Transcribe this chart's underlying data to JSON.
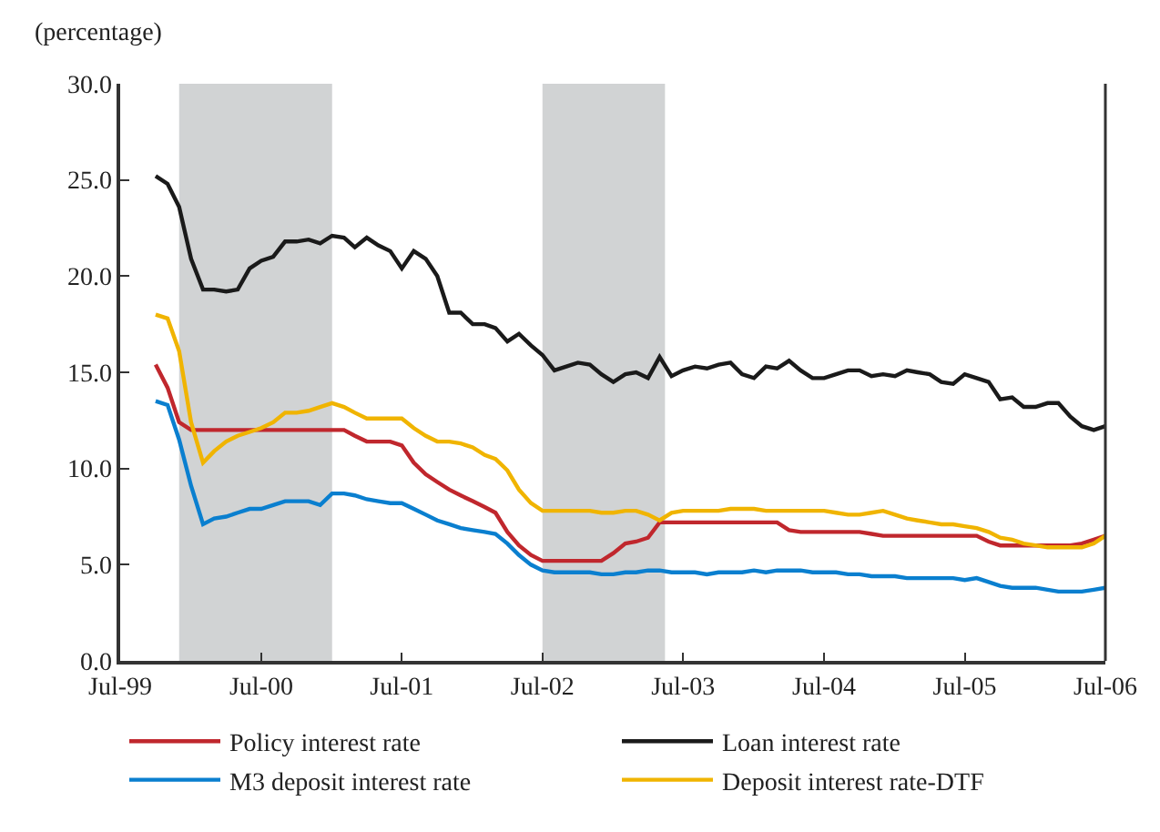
{
  "chart_data": {
    "type": "line",
    "ylabel": "(percentage)",
    "x": [
      "1999-10",
      "1999-11",
      "1999-12",
      "2000-01",
      "2000-02",
      "2000-03",
      "2000-04",
      "2000-05",
      "2000-06",
      "2000-07",
      "2000-08",
      "2000-09",
      "2000-10",
      "2000-11",
      "2000-12",
      "2001-01",
      "2001-02",
      "2001-03",
      "2001-04",
      "2001-05",
      "2001-06",
      "2001-07",
      "2001-08",
      "2001-09",
      "2001-10",
      "2001-11",
      "2001-12",
      "2002-01",
      "2002-02",
      "2002-03",
      "2002-04",
      "2002-05",
      "2002-06",
      "2002-07",
      "2002-08",
      "2002-09",
      "2002-10",
      "2002-11",
      "2002-12",
      "2003-01",
      "2003-02",
      "2003-03",
      "2003-04",
      "2003-05",
      "2003-06",
      "2003-07",
      "2003-08",
      "2003-09",
      "2003-10",
      "2003-11",
      "2003-12",
      "2004-01",
      "2004-02",
      "2004-03",
      "2004-04",
      "2004-05",
      "2004-06",
      "2004-07",
      "2004-08",
      "2004-09",
      "2004-10",
      "2004-11",
      "2004-12",
      "2005-01",
      "2005-02",
      "2005-03",
      "2005-04",
      "2005-05",
      "2005-06",
      "2005-07",
      "2005-08",
      "2005-09",
      "2005-10",
      "2005-11",
      "2005-12",
      "2006-01",
      "2006-02",
      "2006-03",
      "2006-04",
      "2006-05",
      "2006-06",
      "2006-07"
    ],
    "series": [
      {
        "name": "Policy interest rate",
        "color": "#c0272d",
        "values": [
          15.4,
          14.2,
          12.4,
          12.0,
          12.0,
          12.0,
          12.0,
          12.0,
          12.0,
          12.0,
          12.0,
          12.0,
          12.0,
          12.0,
          12.0,
          12.0,
          12.0,
          11.7,
          11.4,
          11.4,
          11.4,
          11.2,
          10.3,
          9.7,
          9.3,
          8.9,
          8.6,
          8.3,
          8.0,
          7.7,
          6.7,
          6.0,
          5.5,
          5.2,
          5.2,
          5.2,
          5.2,
          5.2,
          5.2,
          5.6,
          6.1,
          6.2,
          6.4,
          7.2,
          7.2,
          7.2,
          7.2,
          7.2,
          7.2,
          7.2,
          7.2,
          7.2,
          7.2,
          7.2,
          6.8,
          6.7,
          6.7,
          6.7,
          6.7,
          6.7,
          6.7,
          6.6,
          6.5,
          6.5,
          6.5,
          6.5,
          6.5,
          6.5,
          6.5,
          6.5,
          6.5,
          6.2,
          6.0,
          6.0,
          6.0,
          6.0,
          6.0,
          6.0,
          6.0,
          6.1,
          6.3,
          6.5
        ]
      },
      {
        "name": "Loan interest rate",
        "color": "#1a1a1a",
        "values": [
          25.2,
          24.8,
          23.6,
          20.9,
          19.3,
          19.3,
          19.2,
          19.3,
          20.4,
          20.8,
          21.0,
          21.8,
          21.8,
          21.9,
          21.7,
          22.1,
          22.0,
          21.5,
          22.0,
          21.6,
          21.3,
          20.4,
          21.3,
          20.9,
          20.0,
          18.1,
          18.1,
          17.5,
          17.5,
          17.3,
          16.6,
          17.0,
          16.4,
          15.9,
          15.1,
          15.3,
          15.5,
          15.4,
          14.9,
          14.5,
          14.9,
          15.0,
          14.7,
          15.8,
          14.8,
          15.1,
          15.3,
          15.2,
          15.4,
          15.5,
          14.9,
          14.7,
          15.3,
          15.2,
          15.6,
          15.1,
          14.7,
          14.7,
          14.9,
          15.1,
          15.1,
          14.8,
          14.9,
          14.8,
          15.1,
          15.0,
          14.9,
          14.5,
          14.4,
          14.9,
          14.7,
          14.5,
          13.6,
          13.7,
          13.2,
          13.2,
          13.4,
          13.4,
          12.7,
          12.2,
          12.0,
          12.2
        ]
      },
      {
        "name": "M3 deposit interest rate",
        "color": "#0a7fcf",
        "values": [
          13.5,
          13.3,
          11.5,
          9.1,
          7.1,
          7.4,
          7.5,
          7.7,
          7.9,
          7.9,
          8.1,
          8.3,
          8.3,
          8.3,
          8.1,
          8.7,
          8.7,
          8.6,
          8.4,
          8.3,
          8.2,
          8.2,
          7.9,
          7.6,
          7.3,
          7.1,
          6.9,
          6.8,
          6.7,
          6.6,
          6.1,
          5.5,
          5.0,
          4.7,
          4.6,
          4.6,
          4.6,
          4.6,
          4.5,
          4.5,
          4.6,
          4.6,
          4.7,
          4.7,
          4.6,
          4.6,
          4.6,
          4.5,
          4.6,
          4.6,
          4.6,
          4.7,
          4.6,
          4.7,
          4.7,
          4.7,
          4.6,
          4.6,
          4.6,
          4.5,
          4.5,
          4.4,
          4.4,
          4.4,
          4.3,
          4.3,
          4.3,
          4.3,
          4.3,
          4.2,
          4.3,
          4.1,
          3.9,
          3.8,
          3.8,
          3.8,
          3.7,
          3.6,
          3.6,
          3.6,
          3.7,
          3.8
        ]
      },
      {
        "name": "Deposit interest rate-DTF",
        "color": "#f0b400",
        "values": [
          18.0,
          17.8,
          16.1,
          12.4,
          10.3,
          10.9,
          11.4,
          11.7,
          11.9,
          12.1,
          12.4,
          12.9,
          12.9,
          13.0,
          13.2,
          13.4,
          13.2,
          12.9,
          12.6,
          12.6,
          12.6,
          12.6,
          12.1,
          11.7,
          11.4,
          11.4,
          11.3,
          11.1,
          10.7,
          10.5,
          9.9,
          8.9,
          8.2,
          7.8,
          7.8,
          7.8,
          7.8,
          7.8,
          7.7,
          7.7,
          7.8,
          7.8,
          7.6,
          7.3,
          7.7,
          7.8,
          7.8,
          7.8,
          7.8,
          7.9,
          7.9,
          7.9,
          7.8,
          7.8,
          7.8,
          7.8,
          7.8,
          7.8,
          7.7,
          7.6,
          7.6,
          7.7,
          7.8,
          7.6,
          7.4,
          7.3,
          7.2,
          7.1,
          7.1,
          7.0,
          6.9,
          6.7,
          6.4,
          6.3,
          6.1,
          6.0,
          5.9,
          5.9,
          5.9,
          5.9,
          6.1,
          6.5
        ]
      }
    ],
    "xlim": [
      "1999-07",
      "2006-07"
    ],
    "xticks": [
      {
        "value": "1999-07",
        "label": "Jul-99"
      },
      {
        "value": "2000-07",
        "label": "Jul-00"
      },
      {
        "value": "2001-07",
        "label": "Jul-01"
      },
      {
        "value": "2002-07",
        "label": "Jul-02"
      },
      {
        "value": "2003-07",
        "label": "Jul-03"
      },
      {
        "value": "2004-07",
        "label": "Jul-04"
      },
      {
        "value": "2005-07",
        "label": "Jul-05"
      },
      {
        "value": "2006-07",
        "label": "Jul-06"
      }
    ],
    "ylim": [
      0,
      30
    ],
    "yticks": [
      {
        "value": 0,
        "label": "0.0"
      },
      {
        "value": 5,
        "label": "5.0"
      },
      {
        "value": 10,
        "label": "10.0"
      },
      {
        "value": 15,
        "label": "15.0"
      },
      {
        "value": 20,
        "label": "20.0"
      },
      {
        "value": 25,
        "label": "25.0"
      },
      {
        "value": 30,
        "label": "30.0"
      }
    ],
    "bands": [
      {
        "axis": "x",
        "from": "1999-12",
        "to": "2001-01",
        "color": "#d1d3d4"
      },
      {
        "axis": "x",
        "from": "2002-07",
        "to": "2003-05-15",
        "color": "#d1d3d4"
      }
    ],
    "grid": false,
    "legend": "bottom",
    "marker": "none",
    "line_style": "solid"
  }
}
